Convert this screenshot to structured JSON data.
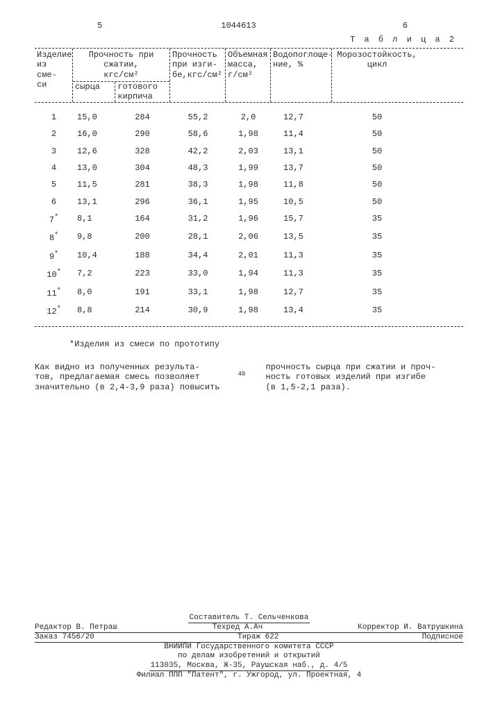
{
  "header": {
    "left_num": "5",
    "center_num": "1044613",
    "right_num": "6"
  },
  "table_caption": "Т а б л и ц а   2",
  "columns": {
    "idx": {
      "l1": "Изделие",
      "l2": "из сме-",
      "l3": "си"
    },
    "compress": {
      "l1": "Прочность при сжатии,",
      "l2": "кгс/см²",
      "sub_sy": "сырца",
      "sub_got_l1": "готового",
      "sub_got_l2": "кирпича"
    },
    "izg": {
      "l1": "Прочность",
      "l2": "при изги-",
      "l3": "бе,кгс/см²"
    },
    "mass": {
      "l1": "Объемная",
      "l2": "масса,",
      "l3": "г/см²"
    },
    "vod": {
      "l1": "Водопоглоще-",
      "l2": "ние, %"
    },
    "mor": {
      "l1": "Морозостойкость,",
      "l2": "цикл"
    }
  },
  "rows": [
    {
      "idx": "1",
      "star": false,
      "sy": "15,0",
      "got": "284",
      "izg": "55,2",
      "mass": "2,0",
      "vod": "12,7",
      "mor": "50"
    },
    {
      "idx": "2",
      "star": false,
      "sy": "16,0",
      "got": "290",
      "izg": "58,6",
      "mass": "1,98",
      "vod": "11,4",
      "mor": "50"
    },
    {
      "idx": "3",
      "star": false,
      "sy": "12,6",
      "got": "328",
      "izg": "42,2",
      "mass": "2,03",
      "vod": "13,1",
      "mor": "50"
    },
    {
      "idx": "4",
      "star": false,
      "sy": "13,0",
      "got": "304",
      "izg": "48,3",
      "mass": "1,99",
      "vod": "13,7",
      "mor": "50"
    },
    {
      "idx": "5",
      "star": false,
      "sy": "11,5",
      "got": "281",
      "izg": "38,3",
      "mass": "1,98",
      "vod": "11,8",
      "mor": "50"
    },
    {
      "idx": "6",
      "star": false,
      "sy": "13,1",
      "got": "296",
      "izg": "36,1",
      "mass": "1,95",
      "vod": "10,5",
      "mor": "50"
    },
    {
      "idx": "7",
      "star": true,
      "sy": "8,1",
      "got": "164",
      "izg": "31,2",
      "mass": "1,96",
      "vod": "15,7",
      "mor": "35"
    },
    {
      "idx": "8",
      "star": true,
      "sy": "9,8",
      "got": "200",
      "izg": "28,1",
      "mass": "2,06",
      "vod": "13,5",
      "mor": "35"
    },
    {
      "idx": "9",
      "star": true,
      "sy": "10,4",
      "got": "188",
      "izg": "34,4",
      "mass": "2,01",
      "vod": "11,3",
      "mor": "35"
    },
    {
      "idx": "10",
      "star": true,
      "sy": "7,2",
      "got": "223",
      "izg": "33,0",
      "mass": "1,94",
      "vod": "11,3",
      "mor": "35"
    },
    {
      "idx": "11",
      "star": true,
      "sy": "8,0",
      "got": "191",
      "izg": "33,1",
      "mass": "1,98",
      "vod": "12,7",
      "mor": "35"
    },
    {
      "idx": "12",
      "star": true,
      "sy": "8,8",
      "got": "214",
      "izg": "30,9",
      "mass": "1,98",
      "vod": "13,4",
      "mor": "35"
    }
  ],
  "footnote": "*Изделия из смеси по прототипу",
  "para_left": "Как видно из полученных результа-\nтов, предлагаемая смесь позволяет\nзначительно (в 2,4-3,9 раза) повысить",
  "para_right": "прочность сырца при сжатии и проч-\nность готовых изделий при изгибе\n(в 1,5-2,1 раза).",
  "line_marker": "40",
  "footer": {
    "compiler": "Составитель Т. Сельченкова",
    "editor_l": "Редактор В. Петраш",
    "editor_c": "Техред  А.Ач",
    "editor_r": "Корректор И. Ватрушкина",
    "order_l": "Заказ 7456/20",
    "order_c": "Тираж 622",
    "order_r": "Подписное",
    "org1": "ВНИИПИ Государственного комитета СССР",
    "org2": "по делам изобретений и открытий",
    "addr1": "113035, Москва, Ж-35, Раушская наб., д. 4/5",
    "addr2": "Филиал ППП \"Патент\", г. Ужгород, ул. Проектная, 4"
  }
}
